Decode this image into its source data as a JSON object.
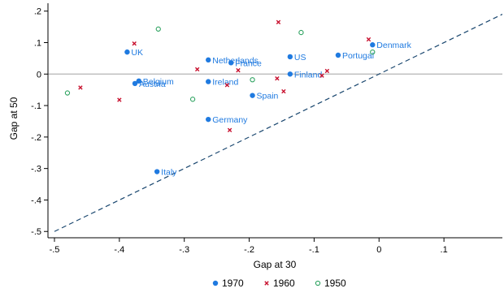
{
  "chart_data": {
    "type": "scatter",
    "xlabel": "Gap at 30",
    "ylabel": "Gap at 50",
    "xlim": [
      -0.51,
      0.19
    ],
    "ylim": [
      -0.52,
      0.225
    ],
    "x_ticks": [
      -0.5,
      -0.4,
      -0.3,
      -0.2,
      -0.1,
      0,
      0.1
    ],
    "x_tick_labels": [
      "-.5",
      "-.4",
      "-.3",
      "-.2",
      "-.1",
      "0",
      ".1"
    ],
    "y_ticks": [
      -0.5,
      -0.4,
      -0.3,
      -0.2,
      -0.1,
      0,
      0.1,
      0.2
    ],
    "y_tick_labels": [
      "-.5",
      "-.4",
      "-.3",
      "-.2",
      "-.1",
      "0",
      ".1",
      ".2"
    ],
    "grid": false,
    "reference_lines": [
      {
        "kind": "horizontal",
        "y": 0,
        "style": "solid",
        "color": "#b4b4b4"
      },
      {
        "kind": "diagonal",
        "from": [
          -0.5,
          -0.5
        ],
        "to": [
          0.19,
          0.19
        ],
        "style": "dashed",
        "color": "#1a476f"
      }
    ],
    "legend_position": "bottom",
    "series": [
      {
        "name": "1970",
        "marker": "dot",
        "color": "#1f7ae0",
        "points": [
          {
            "x": -0.388,
            "y": 0.07,
            "label": "UK"
          },
          {
            "x": -0.37,
            "y": -0.022,
            "label": "Belgium"
          },
          {
            "x": -0.376,
            "y": -0.03,
            "label": "Austria"
          },
          {
            "x": -0.263,
            "y": 0.045,
            "label": "Netherlands"
          },
          {
            "x": -0.228,
            "y": 0.036,
            "label": "France"
          },
          {
            "x": -0.263,
            "y": -0.024,
            "label": "Ireland"
          },
          {
            "x": -0.195,
            "y": -0.068,
            "label": "Spain"
          },
          {
            "x": -0.137,
            "y": 0.055,
            "label": "US"
          },
          {
            "x": -0.137,
            "y": 0.0,
            "label": "Finland"
          },
          {
            "x": -0.063,
            "y": 0.06,
            "label": "Portugal"
          },
          {
            "x": -0.01,
            "y": 0.093,
            "label": "Denmark"
          },
          {
            "x": -0.263,
            "y": -0.144,
            "label": "Germany"
          },
          {
            "x": -0.342,
            "y": -0.31,
            "label": "Italy"
          }
        ]
      },
      {
        "name": "1960",
        "marker": "x",
        "color": "#c8102e",
        "points": [
          {
            "x": -0.46,
            "y": -0.043
          },
          {
            "x": -0.4,
            "y": -0.082
          },
          {
            "x": -0.377,
            "y": 0.097
          },
          {
            "x": -0.28,
            "y": 0.015
          },
          {
            "x": -0.234,
            "y": -0.035
          },
          {
            "x": -0.217,
            "y": 0.012
          },
          {
            "x": -0.23,
            "y": -0.178
          },
          {
            "x": -0.157,
            "y": -0.014
          },
          {
            "x": -0.155,
            "y": 0.165
          },
          {
            "x": -0.147,
            "y": -0.055
          },
          {
            "x": -0.088,
            "y": -0.005
          },
          {
            "x": -0.08,
            "y": 0.01
          },
          {
            "x": -0.016,
            "y": 0.11
          }
        ]
      },
      {
        "name": "1950",
        "marker": "circle-open",
        "color": "#2ca25f",
        "points": [
          {
            "x": -0.48,
            "y": -0.06
          },
          {
            "x": -0.34,
            "y": 0.143
          },
          {
            "x": -0.287,
            "y": -0.08
          },
          {
            "x": -0.195,
            "y": -0.018
          },
          {
            "x": -0.12,
            "y": 0.132
          },
          {
            "x": -0.01,
            "y": 0.07
          }
        ]
      }
    ]
  }
}
